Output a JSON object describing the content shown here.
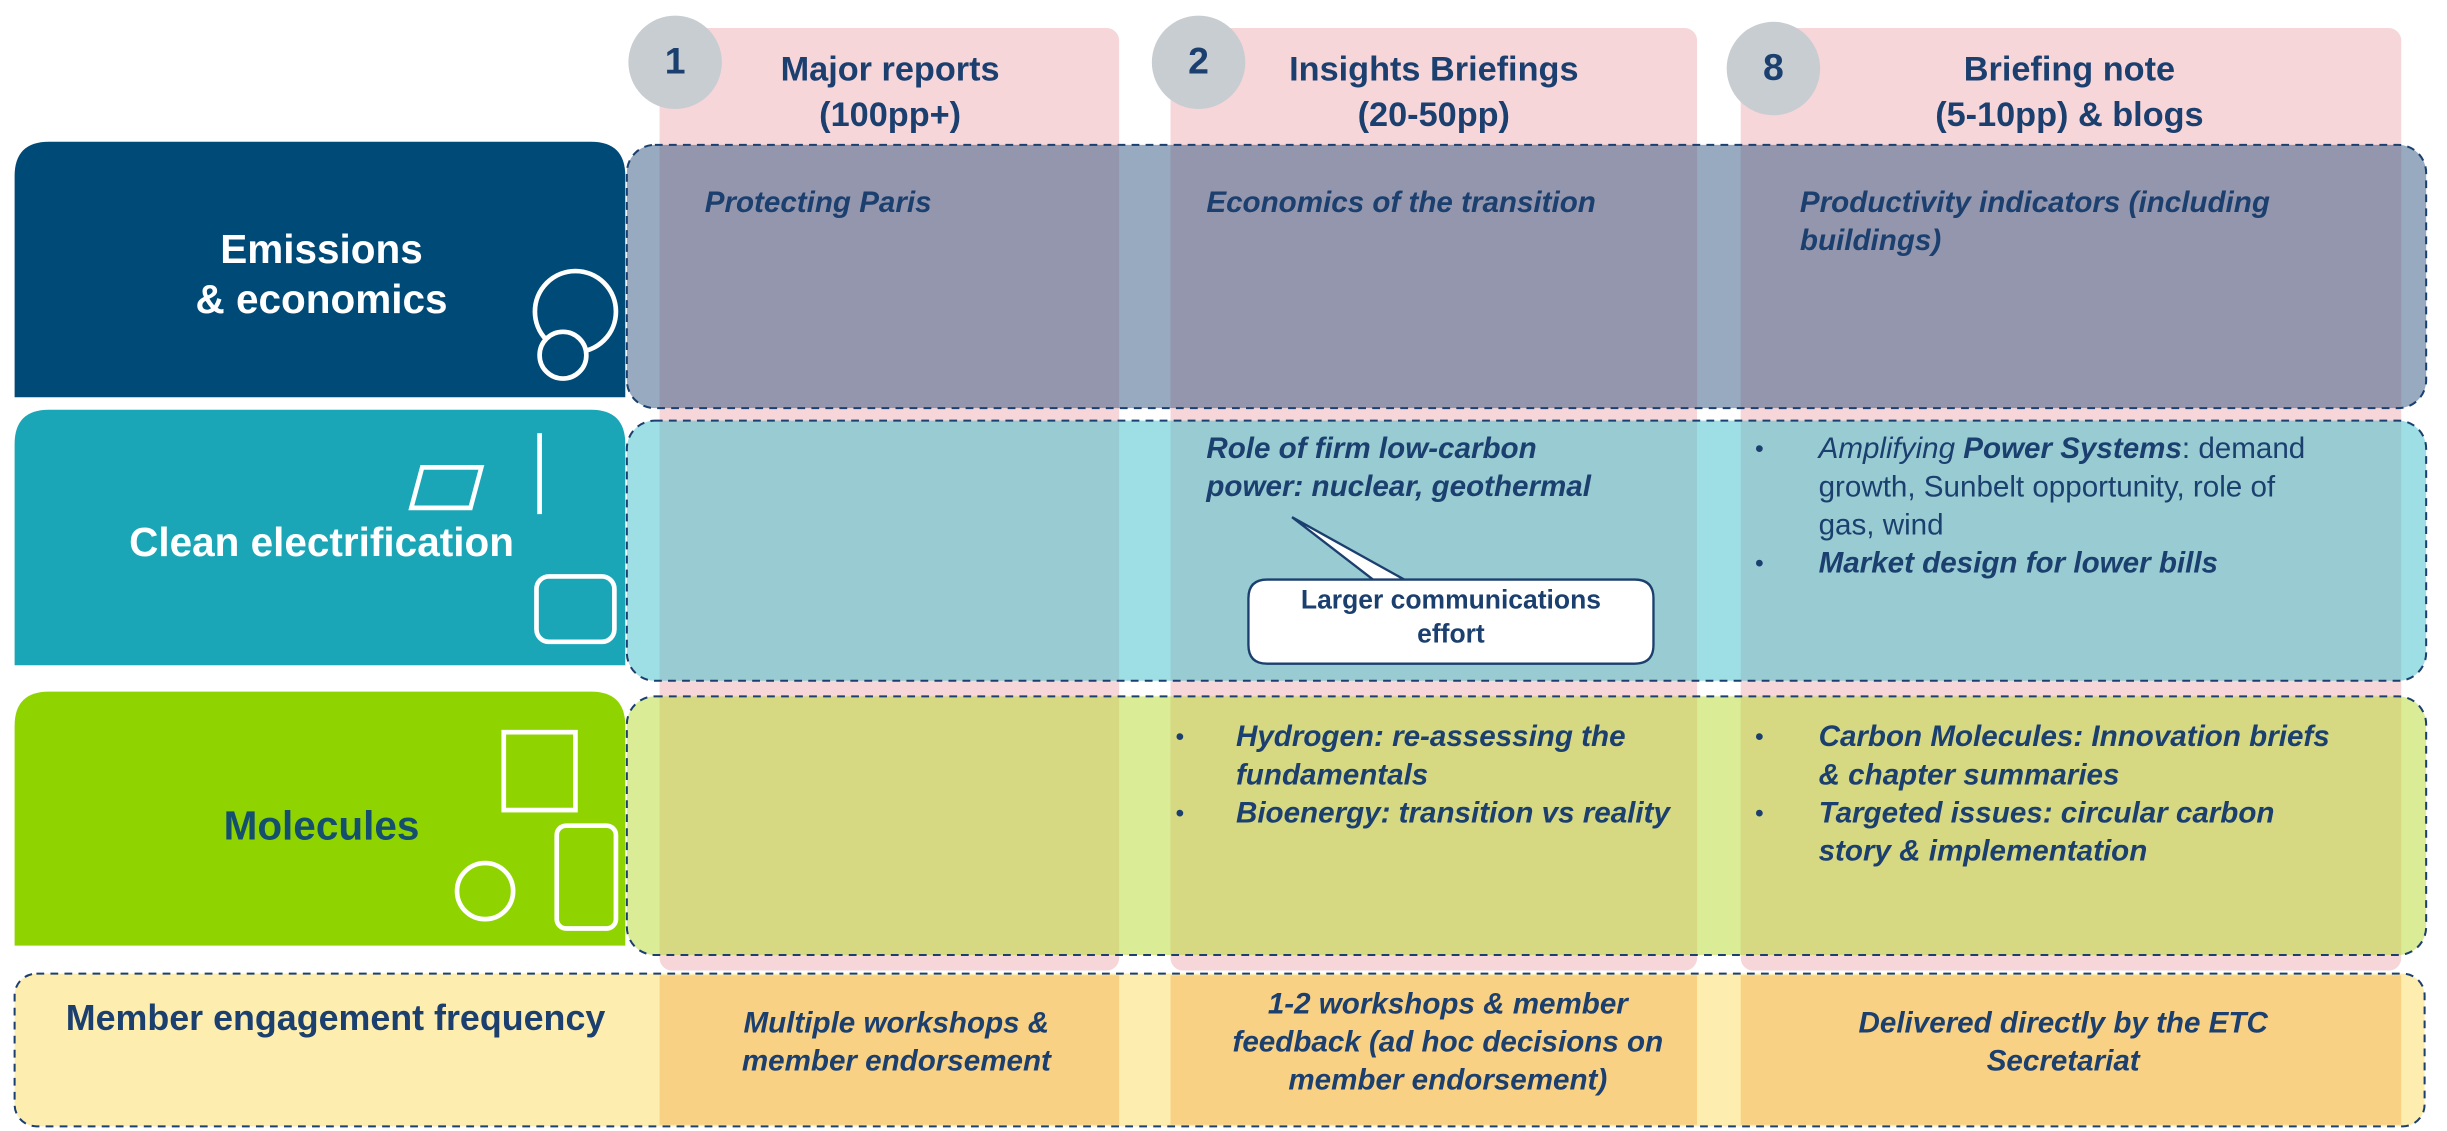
{
  "columns": [
    {
      "number": "1",
      "title": [
        "Major reports",
        "(100pp+)"
      ]
    },
    {
      "number": "2",
      "title": [
        "Insights Briefings",
        "(20-50pp)"
      ]
    },
    {
      "number": "8",
      "title": [
        "Briefing note",
        "(5-10pp) & blogs"
      ]
    }
  ],
  "rows": [
    {
      "label": [
        "Emissions",
        "& economics"
      ],
      "color": "#004a77",
      "label_color": "#ffffff",
      "overlay": "#2f5680",
      "major": {
        "lines": [
          "Protecting Paris"
        ]
      },
      "insights": {
        "lines": [
          "Economics of the transition"
        ]
      },
      "briefing": {
        "lines": [
          "Productivity indicators (including",
          "buildings)"
        ]
      }
    },
    {
      "label": [
        "Clean electrification"
      ],
      "color": "#1aa6b7",
      "label_color": "#ffffff",
      "overlay": "#3bbfcc",
      "insights": {
        "lines": [
          "Role of firm low-carbon",
          "power: nuclear, geothermal"
        ],
        "callout": [
          "Larger communications",
          "effort"
        ]
      },
      "briefing": {
        "bullets": [
          [
            [
              {
                "text": "Amplifying ",
                "style": "italic"
              },
              {
                "text": "Power Systems",
                "style": "bold-italic"
              },
              {
                "text": ": demand",
                "style": "regular"
              }
            ],
            [
              {
                "text": "growth, Sunbelt opportunity, role of",
                "style": "regular"
              }
            ],
            [
              {
                "text": "gas, wind",
                "style": "regular"
              }
            ]
          ],
          [
            [
              {
                "text": "Market design for lower bills",
                "style": "bold-italic"
              }
            ]
          ]
        ]
      }
    },
    {
      "label": [
        "Molecules"
      ],
      "color": "#8fd400",
      "label_color": "#14506e",
      "overlay": "#b5d92c",
      "insights": {
        "bullets": [
          [
            "Hydrogen: re-assessing the",
            "fundamentals"
          ],
          [
            "Bioenergy: transition vs reality"
          ]
        ]
      },
      "briefing": {
        "bullets": [
          [
            "Carbon Molecules: Innovation briefs",
            "& chapter summaries"
          ],
          [
            "Targeted issues: circular carbon",
            "story & implementation"
          ]
        ]
      }
    }
  ],
  "engagement": {
    "label": "Member engagement frequency",
    "major": [
      "Multiple workshops &",
      "member endorsement"
    ],
    "insights": [
      "1-2 workshops & member",
      "feedback (ad hoc decisions on",
      "member endorsement)"
    ],
    "briefing": [
      "Delivered directly by the ETC",
      "Secretariat"
    ]
  }
}
